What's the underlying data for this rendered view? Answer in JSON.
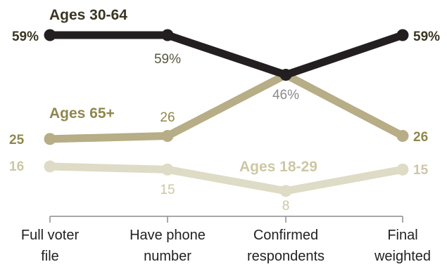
{
  "chart_data": {
    "type": "line",
    "categories": [
      "Full voter file",
      "Have phone number",
      "Confirmed respondents",
      "Final weighted"
    ],
    "category_label_lines": [
      [
        "Full voter",
        "file"
      ],
      [
        "Have phone",
        "number"
      ],
      [
        "Confirmed",
        "respondents"
      ],
      [
        "Final",
        "weighted"
      ]
    ],
    "series": [
      {
        "name": "Ages 30-64",
        "values": [
          59,
          59,
          46,
          59
        ],
        "color": "#231f20",
        "value_labels": [
          "59%",
          "59%",
          "46%",
          "59%"
        ]
      },
      {
        "name": "Ages 65+",
        "values": [
          25,
          26,
          46,
          26
        ],
        "color": "#b7ad86",
        "value_labels": [
          "25",
          "26",
          "",
          "26"
        ]
      },
      {
        "name": "Ages 18-29",
        "values": [
          16,
          15,
          8,
          15
        ],
        "color": "#dedbc6",
        "value_labels": [
          "16",
          "15",
          "8",
          "15"
        ]
      }
    ],
    "label_colors": {
      "Ages 30-64": "#3a3624",
      "Ages 65+": "#8f874f",
      "Ages 18-29": "#cdc7a4",
      "middle_dark": "#5a5540",
      "middle_grey": "#8a8a8a"
    },
    "ylim": [
      0,
      65
    ],
    "grid": false,
    "legend": "inline labels"
  }
}
